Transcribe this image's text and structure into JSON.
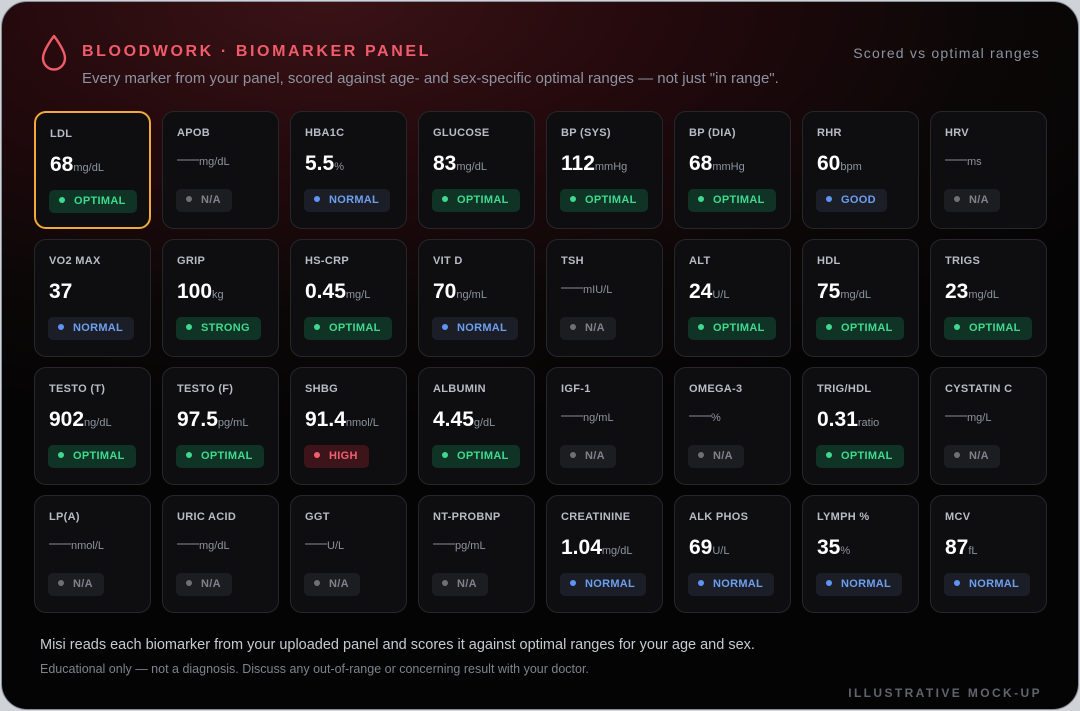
{
  "header": {
    "title": "BLOODWORK · BIOMARKER PANEL",
    "subtitle": "Every marker from your panel, scored against age- and sex-specific optimal ranges — not just \"in range\".",
    "scored": "Scored vs optimal ranges",
    "icon": "blood-drop-icon"
  },
  "colors": {
    "accent": "#f25b6a",
    "optimal": "#3fd98e",
    "normal": "#5f95f0",
    "high": "#f0606e",
    "na": "#6c7078",
    "selected_border": "#f1a93a"
  },
  "markers": [
    {
      "label": "LDL",
      "value": "68",
      "unit": "mg/dL",
      "status": "OPTIMAL",
      "kind": "optimal",
      "selected": true
    },
    {
      "label": "APOB",
      "value": "",
      "unit": "mg/dL",
      "status": "N/A",
      "kind": "na"
    },
    {
      "label": "HBA1C",
      "value": "5.5",
      "unit": "%",
      "status": "NORMAL",
      "kind": "normal"
    },
    {
      "label": "GLUCOSE",
      "value": "83",
      "unit": "mg/dL",
      "status": "OPTIMAL",
      "kind": "optimal"
    },
    {
      "label": "BP (SYS)",
      "value": "112",
      "unit": "mmHg",
      "status": "OPTIMAL",
      "kind": "optimal"
    },
    {
      "label": "BP (DIA)",
      "value": "68",
      "unit": "mmHg",
      "status": "OPTIMAL",
      "kind": "optimal"
    },
    {
      "label": "RHR",
      "value": "60",
      "unit": "bpm",
      "status": "GOOD",
      "kind": "good"
    },
    {
      "label": "HRV",
      "value": "",
      "unit": "ms",
      "status": "N/A",
      "kind": "na"
    },
    {
      "label": "VO2 MAX",
      "value": "37",
      "unit": "",
      "status": "NORMAL",
      "kind": "normal"
    },
    {
      "label": "GRIP",
      "value": "100",
      "unit": "kg",
      "status": "STRONG",
      "kind": "strong"
    },
    {
      "label": "HS-CRP",
      "value": "0.45",
      "unit": "mg/L",
      "status": "OPTIMAL",
      "kind": "optimal"
    },
    {
      "label": "VIT D",
      "value": "70",
      "unit": "ng/mL",
      "status": "NORMAL",
      "kind": "normal"
    },
    {
      "label": "TSH",
      "value": "",
      "unit": "mIU/L",
      "status": "N/A",
      "kind": "na"
    },
    {
      "label": "ALT",
      "value": "24",
      "unit": "U/L",
      "status": "OPTIMAL",
      "kind": "optimal"
    },
    {
      "label": "HDL",
      "value": "75",
      "unit": "mg/dL",
      "status": "OPTIMAL",
      "kind": "optimal"
    },
    {
      "label": "TRIGS",
      "value": "23",
      "unit": "mg/dL",
      "status": "OPTIMAL",
      "kind": "optimal"
    },
    {
      "label": "TESTO (T)",
      "value": "902",
      "unit": "ng/dL",
      "status": "OPTIMAL",
      "kind": "optimal"
    },
    {
      "label": "TESTO (F)",
      "value": "97.5",
      "unit": "pg/mL",
      "status": "OPTIMAL",
      "kind": "optimal"
    },
    {
      "label": "SHBG",
      "value": "91.4",
      "unit": "nmol/L",
      "status": "HIGH",
      "kind": "high"
    },
    {
      "label": "ALBUMIN",
      "value": "4.45",
      "unit": "g/dL",
      "status": "OPTIMAL",
      "kind": "optimal"
    },
    {
      "label": "IGF-1",
      "value": "",
      "unit": "ng/mL",
      "status": "N/A",
      "kind": "na"
    },
    {
      "label": "OMEGA-3",
      "value": "",
      "unit": "%",
      "status": "N/A",
      "kind": "na"
    },
    {
      "label": "TRIG/HDL",
      "value": "0.31",
      "unit": "ratio",
      "status": "OPTIMAL",
      "kind": "optimal"
    },
    {
      "label": "CYSTATIN C",
      "value": "",
      "unit": "mg/L",
      "status": "N/A",
      "kind": "na"
    },
    {
      "label": "LP(A)",
      "value": "",
      "unit": "nmol/L",
      "status": "N/A",
      "kind": "na"
    },
    {
      "label": "URIC ACID",
      "value": "",
      "unit": "mg/dL",
      "status": "N/A",
      "kind": "na"
    },
    {
      "label": "GGT",
      "value": "",
      "unit": "U/L",
      "status": "N/A",
      "kind": "na"
    },
    {
      "label": "NT-PROBNP",
      "value": "",
      "unit": "pg/mL",
      "status": "N/A",
      "kind": "na"
    },
    {
      "label": "CREATININE",
      "value": "1.04",
      "unit": "mg/dL",
      "status": "NORMAL",
      "kind": "normal"
    },
    {
      "label": "ALK PHOS",
      "value": "69",
      "unit": "U/L",
      "status": "NORMAL",
      "kind": "normal"
    },
    {
      "label": "LYMPH %",
      "value": "35",
      "unit": "%",
      "status": "NORMAL",
      "kind": "normal"
    },
    {
      "label": "MCV",
      "value": "87",
      "unit": "fL",
      "status": "NORMAL",
      "kind": "normal"
    }
  ],
  "footer": {
    "line1": "Misi reads each biomarker from your uploaded panel and scores it against optimal ranges for your age and sex.",
    "line2": "Educational only — not a diagnosis. Discuss any out-of-range or concerning result with your doctor.",
    "mockup": "ILLUSTRATIVE MOCK-UP"
  }
}
